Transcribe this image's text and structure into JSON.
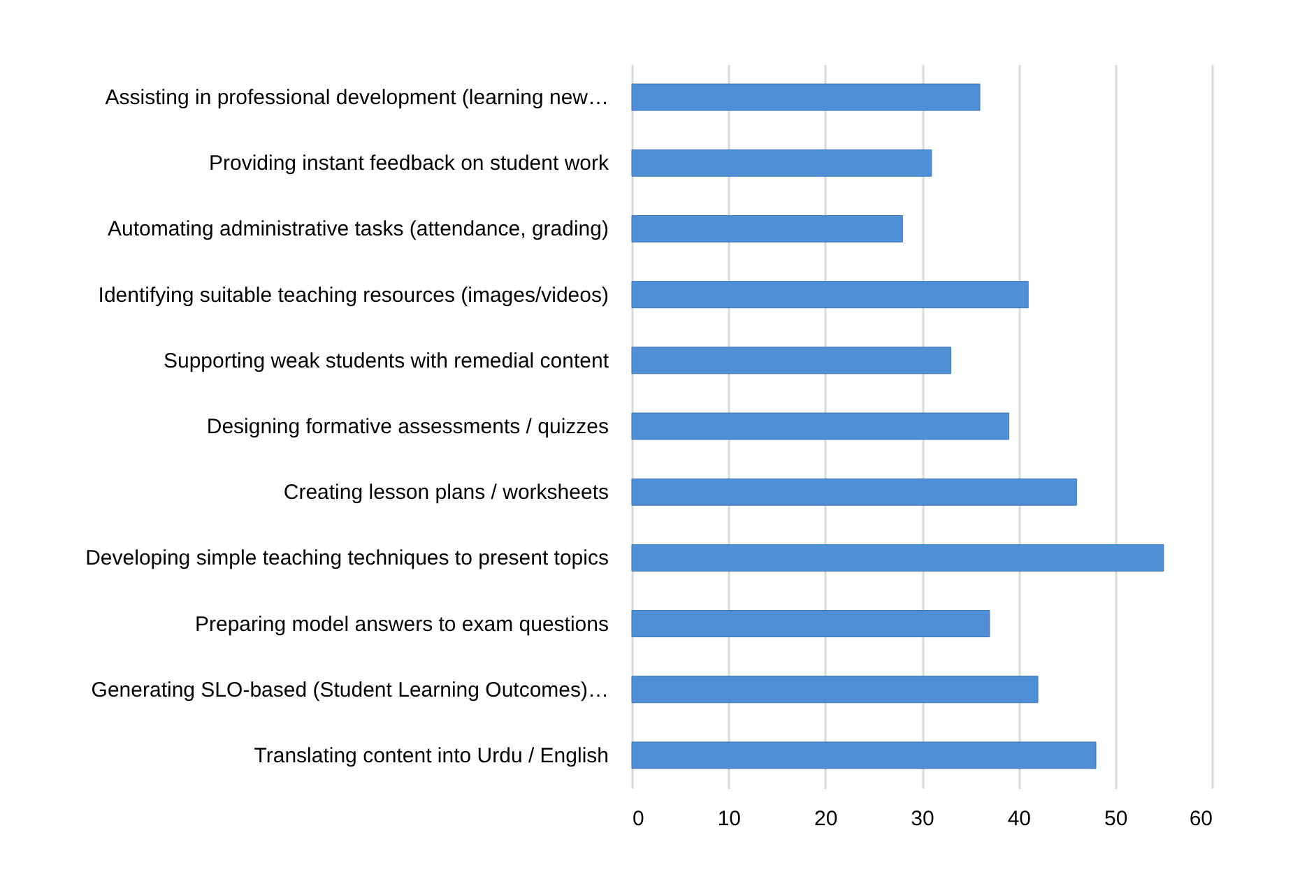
{
  "chart_data": {
    "type": "bar",
    "orientation": "horizontal",
    "categories": [
      "Assisting in professional development (learning new…",
      "Providing instant feedback on student work",
      "Automating administrative tasks (attendance, grading)",
      "Identifying suitable teaching resources (images/videos)",
      "Supporting weak students with remedial content",
      "Designing formative assessments / quizzes",
      "Creating lesson plans / worksheets",
      "Developing simple teaching techniques to present topics",
      "Preparing model answers to exam questions",
      "Generating SLO-based (Student Learning Outcomes)…",
      "Translating content into Urdu / English"
    ],
    "values": [
      36,
      31,
      28,
      41,
      33,
      39,
      46,
      55,
      37,
      42,
      48
    ],
    "color": "#4f8fd6",
    "xlim": [
      0,
      60
    ],
    "xticks": [
      0,
      10,
      20,
      30,
      40,
      50,
      60
    ],
    "grid": "x"
  }
}
